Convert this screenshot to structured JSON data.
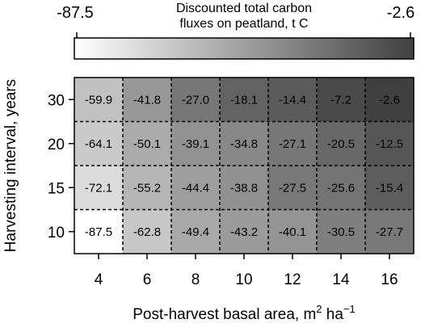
{
  "chart_data": {
    "type": "heatmap",
    "colorbar": {
      "title_lines": [
        "Discounted total carbon",
        "fluxes on peatland, t C"
      ],
      "min_label": "-87.5",
      "max_label": "-2.6",
      "min": -87.5,
      "max": -2.6,
      "color_low": "#ffffff",
      "color_high": "#404040"
    },
    "x_categories": [
      "4",
      "6",
      "8",
      "10",
      "12",
      "14",
      "16"
    ],
    "y_categories": [
      "30",
      "20",
      "15",
      "10"
    ],
    "xlabel": "Post-harvest basal area, m",
    "xlabel_sup1": "2",
    "xlabel_mid": " ha",
    "xlabel_sup2": "−1",
    "ylabel": "Harvesting interval, years",
    "values": [
      [
        -59.9,
        -41.8,
        -27.0,
        -18.1,
        -14.4,
        -7.2,
        -2.6
      ],
      [
        -64.1,
        -50.1,
        -39.1,
        -34.8,
        -27.1,
        -20.5,
        -12.5
      ],
      [
        -72.1,
        -55.2,
        -44.4,
        -38.8,
        -27.5,
        -25.6,
        -15.4
      ],
      [
        -87.5,
        -62.8,
        -49.4,
        -43.2,
        -40.1,
        -30.5,
        -27.7
      ]
    ],
    "value_labels": [
      [
        "-59.9",
        "-41.8",
        "-27.0",
        "-18.1",
        "-14.4",
        "-7.2",
        "-2.6"
      ],
      [
        "-64.1",
        "-50.1",
        "-39.1",
        "-34.8",
        "-27.1",
        "-20.5",
        "-12.5"
      ],
      [
        "-72.1",
        "-55.2",
        "-44.4",
        "-38.8",
        "-27.5",
        "-25.6",
        "-15.4"
      ],
      [
        "-87.5",
        "-62.8",
        "-49.4",
        "-43.2",
        "-40.1",
        "-30.5",
        "-27.7"
      ]
    ]
  }
}
